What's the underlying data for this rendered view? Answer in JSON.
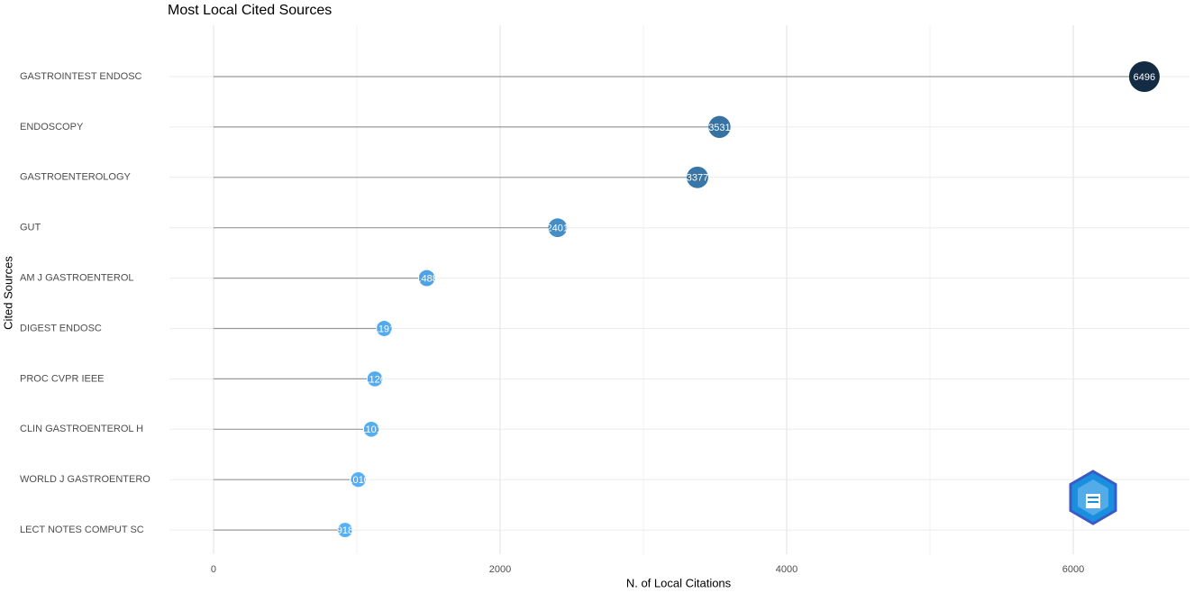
{
  "chart_data": {
    "type": "lollipop",
    "title": "Most Local Cited Sources",
    "x_label": "N. of Local Citations",
    "y_label": "Cited Sources",
    "categories": [
      "GASTROINTEST ENDOSC",
      "ENDOSCOPY",
      "GASTROENTEROLOGY",
      "GUT",
      "AM J GASTROENTEROL",
      "DIGEST ENDOSC",
      "PROC CVPR IEEE",
      "CLIN GASTROENTEROL H",
      "WORLD J GASTROENTERO",
      "LECT NOTES COMPUT SC"
    ],
    "values": [
      6496,
      3531,
      3377,
      2401,
      1488,
      1191,
      1126,
      1101,
      1010,
      918
    ],
    "color_low": "#56b1f7",
    "color_high": "#132b43",
    "stem_color": "#999999",
    "xlim": [
      -308,
      6811
    ],
    "xticks": [
      0,
      2000,
      4000,
      6000
    ],
    "grid": true
  }
}
